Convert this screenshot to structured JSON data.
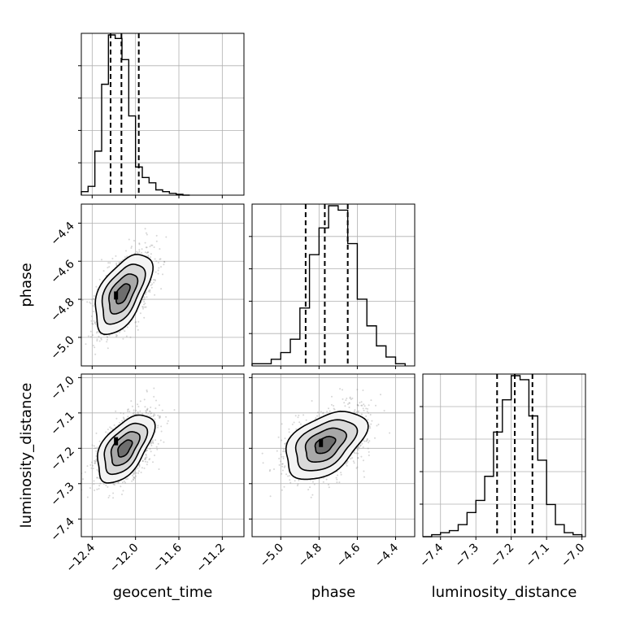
{
  "chart_data": {
    "type": "corner",
    "parameters": [
      "geocent_time",
      "phase",
      "luminosity_distance"
    ],
    "axis_labels": {
      "geocent_time": "geocent_time",
      "phase": "phase",
      "luminosity_distance": "luminosity_distance"
    },
    "ranges": {
      "geocent_time": [
        -12.5,
        -11.0
      ],
      "phase": [
        -5.15,
        -4.3
      ],
      "luminosity_distance": [
        -7.45,
        -6.99
      ]
    },
    "ticks": {
      "geocent_time": [
        -12.4,
        -12.0,
        -11.6,
        -11.2
      ],
      "phase": [
        -5.0,
        -4.8,
        -4.6,
        -4.4
      ],
      "luminosity_distance": [
        -7.4,
        -7.3,
        -7.2,
        -7.1,
        -7.0
      ]
    },
    "tick_labels": {
      "geocent_time": [
        "−12.4",
        "−12.0",
        "−11.6",
        "−11.2"
      ],
      "phase": [
        "−5.0",
        "−4.8",
        "−4.6",
        "−4.4"
      ],
      "luminosity_distance": [
        "−7.4",
        "−7.3",
        "−7.2",
        "−7.1",
        "−7.0"
      ]
    },
    "grid": true,
    "histograms": {
      "geocent_time": {
        "bin_edges": [
          -12.5,
          -12.4375,
          -12.375,
          -12.3125,
          -12.25,
          -12.1875,
          -12.125,
          -12.0625,
          -12.0,
          -11.9375,
          -11.875,
          -11.8125,
          -11.75,
          -11.6875,
          -11.625,
          -11.5625,
          -11.5
        ],
        "counts": [
          2,
          5,
          25,
          63,
          91,
          89,
          77,
          45,
          16,
          10,
          7,
          3,
          2,
          1,
          0.5,
          0
        ]
      },
      "phase": {
        "bin_edges": [
          -5.15,
          -5.1,
          -5.05,
          -5.0,
          -4.95,
          -4.9,
          -4.85,
          -4.8,
          -4.75,
          -4.7,
          -4.65,
          -4.6,
          -4.55,
          -4.5,
          -4.45,
          -4.4,
          -4.35
        ],
        "counts": [
          1,
          1,
          3,
          6,
          12,
          26,
          50,
          62,
          72,
          70,
          55,
          30,
          18,
          9,
          4,
          1
        ]
      },
      "luminosity_distance": {
        "bin_edges": [
          -7.45,
          -7.425,
          -7.4,
          -7.375,
          -7.35,
          -7.325,
          -7.3,
          -7.275,
          -7.25,
          -7.225,
          -7.2,
          -7.175,
          -7.15,
          -7.125,
          -7.1,
          -7.075,
          -7.05,
          -7.025,
          -7.0
        ],
        "counts": [
          0,
          1,
          2,
          3,
          6,
          12,
          18,
          30,
          52,
          68,
          80,
          78,
          60,
          38,
          16,
          6,
          2,
          1
        ]
      }
    },
    "quantiles": {
      "geocent_time": [
        -12.23,
        -12.13,
        -11.97
      ],
      "phase": [
        -4.87,
        -4.77,
        -4.65
      ],
      "luminosity_distance": [
        -7.24,
        -7.19,
        -7.14
      ]
    },
    "pairs": [
      {
        "x": "geocent_time",
        "y": "phase",
        "mean": [
          -12.12,
          -4.77
        ],
        "sd": [
          0.13,
          0.105
        ],
        "corr": 0.55,
        "peak": [
          -12.18,
          -4.78
        ]
      },
      {
        "x": "geocent_time",
        "y": "luminosity_distance",
        "mean": [
          -12.1,
          -7.2
        ],
        "sd": [
          0.13,
          0.048
        ],
        "corr": 0.55,
        "peak": [
          -12.18,
          -7.18
        ]
      },
      {
        "x": "phase",
        "y": "luminosity_distance",
        "mean": [
          -4.77,
          -7.19
        ],
        "sd": [
          0.105,
          0.048
        ],
        "corr": 0.45,
        "peak": [
          -4.79,
          -7.185
        ]
      }
    ],
    "contour_levels_sigma": [
      0.5,
      1.0,
      1.5,
      2.0
    ]
  }
}
